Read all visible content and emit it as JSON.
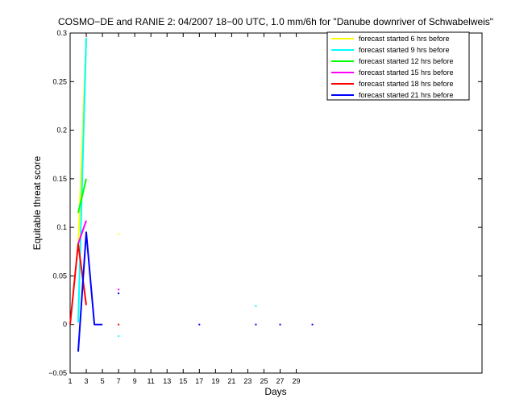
{
  "chart_data": {
    "type": "line",
    "title": "COSMO−DE and RANIE 2: 04/2007 18−00 UTC, 1.0 mm/6h for \"Danube downriver of Schwabelweis\"",
    "xlabel": "Days",
    "ylabel": "Equitable threat score",
    "xlim": [
      1,
      52
    ],
    "ylim": [
      -0.05,
      0.3
    ],
    "xticks": [
      1,
      3,
      5,
      7,
      9,
      11,
      13,
      15,
      17,
      19,
      21,
      23,
      25,
      27,
      29
    ],
    "yticks": [
      -0.05,
      0,
      0.05,
      0.1,
      0.15,
      0.2,
      0.25,
      0.3
    ],
    "ytick_labels": [
      "−0.05",
      "0",
      "0.05",
      "0.1",
      "0.15",
      "0.2",
      "0.25",
      "0.3"
    ],
    "grid": false,
    "legend_position": "top-right",
    "series": [
      {
        "name": "forecast started 6 hrs before",
        "color": "#ffff00",
        "segments": [
          [
            [
              2,
              0.08
            ],
            [
              3,
              0.295
            ]
          ]
        ],
        "points": [
          [
            7,
            0.093
          ]
        ]
      },
      {
        "name": "forecast started 9 hrs before",
        "color": "#00ffff",
        "segments": [
          [
            [
              2,
              0.002
            ],
            [
              3,
              0.295
            ]
          ]
        ],
        "points": [
          [
            7,
            -0.012
          ],
          [
            24,
            0.019
          ]
        ]
      },
      {
        "name": "forecast started 12 hrs before",
        "color": "#00ff00",
        "segments": [
          [
            [
              2,
              0.115
            ],
            [
              3,
              0.15
            ]
          ]
        ],
        "points": []
      },
      {
        "name": "forecast started 15 hrs before",
        "color": "#ff00ff",
        "segments": [
          [
            [
              2,
              0.083
            ],
            [
              3,
              0.107
            ]
          ]
        ],
        "points": [
          [
            7,
            0.036
          ]
        ]
      },
      {
        "name": "forecast started 18 hrs before",
        "color": "#ff0000",
        "segments": [
          [
            [
              1,
              0.0
            ],
            [
              2,
              0.083
            ],
            [
              3,
              0.02
            ]
          ]
        ],
        "points": [
          [
            7,
            0.0
          ]
        ]
      },
      {
        "name": "forecast started 21 hrs before",
        "color": "#0000ff",
        "segments": [
          [
            [
              2,
              -0.028
            ],
            [
              3,
              0.095
            ],
            [
              4,
              0.0
            ],
            [
              5,
              0.0
            ]
          ]
        ],
        "points": [
          [
            7,
            0.032
          ],
          [
            17,
            0.0
          ],
          [
            24,
            0.0
          ],
          [
            27,
            0.0
          ],
          [
            31,
            0.0
          ]
        ]
      }
    ]
  }
}
